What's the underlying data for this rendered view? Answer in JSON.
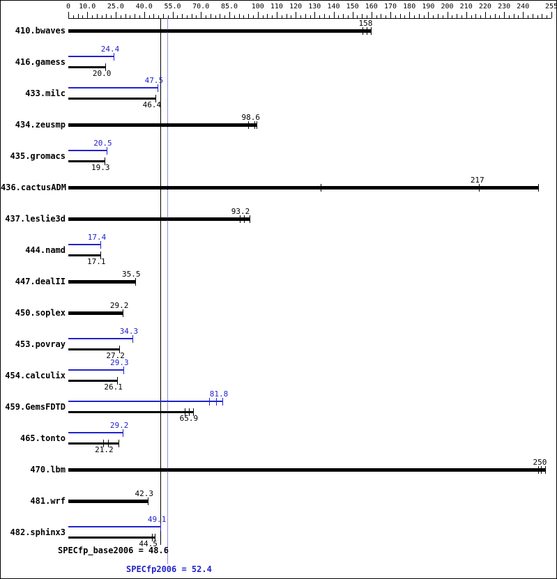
{
  "chart_data": {
    "type": "bar",
    "orientation": "horizontal",
    "title": "",
    "xlim": [
      0,
      255
    ],
    "grid": false,
    "axis_ticks": [
      {
        "value": 0,
        "label": "0"
      },
      {
        "value": 10,
        "label": "10.0"
      },
      {
        "value": 25,
        "label": "25.0"
      },
      {
        "value": 40,
        "label": "40.0"
      },
      {
        "value": 55,
        "label": "55.0"
      },
      {
        "value": 70,
        "label": "70.0"
      },
      {
        "value": 85,
        "label": "85.0"
      },
      {
        "value": 100,
        "label": "100"
      },
      {
        "value": 110,
        "label": "110"
      },
      {
        "value": 120,
        "label": "120"
      },
      {
        "value": 130,
        "label": "130"
      },
      {
        "value": 140,
        "label": "140"
      },
      {
        "value": 150,
        "label": "150"
      },
      {
        "value": 160,
        "label": "160"
      },
      {
        "value": 170,
        "label": "170"
      },
      {
        "value": 180,
        "label": "180"
      },
      {
        "value": 190,
        "label": "190"
      },
      {
        "value": 200,
        "label": "200"
      },
      {
        "value": 210,
        "label": "210"
      },
      {
        "value": 220,
        "label": "220"
      },
      {
        "value": 230,
        "label": "230"
      },
      {
        "value": 240,
        "label": "240"
      },
      {
        "value": 255,
        "label": "255"
      }
    ],
    "benchmarks": [
      {
        "name": "410.bwaves",
        "peak": null,
        "base": {
          "value": 158,
          "label": "158",
          "marks": [
            155.6,
            158,
            160
          ],
          "bar_end": 160
        }
      },
      {
        "name": "416.gamess",
        "peak": {
          "value": 24.4,
          "label": "24.4"
        },
        "base": {
          "value": 20.0,
          "label": "20.0"
        }
      },
      {
        "name": "433.milc",
        "peak": {
          "value": 47.5,
          "label": "47.5"
        },
        "base": {
          "value": 46.4,
          "label": "46.4"
        }
      },
      {
        "name": "434.zeusmp",
        "peak": null,
        "base": {
          "value": 98.6,
          "label": "98.6",
          "marks": [
            95.3,
            98.6,
            99.7
          ],
          "bar_end": 99.7
        }
      },
      {
        "name": "435.gromacs",
        "peak": {
          "value": 20.5,
          "label": "20.5"
        },
        "base": {
          "value": 19.3,
          "label": "19.3"
        }
      },
      {
        "name": "436.cactusADM",
        "peak": null,
        "base": {
          "value": 217,
          "label": "217",
          "marks": [
            133.5,
            217,
            248.5
          ],
          "bar_end": 248.5
        }
      },
      {
        "name": "437.leslie3d",
        "peak": null,
        "base": {
          "value": 93.2,
          "label": "93.2",
          "marks": [
            90.9,
            93.2,
            96
          ],
          "bar_end": 96
        }
      },
      {
        "name": "444.namd",
        "peak": {
          "value": 17.4,
          "label": "17.4"
        },
        "base": {
          "value": 17.1,
          "label": "17.1"
        }
      },
      {
        "name": "447.dealII",
        "peak": null,
        "base": {
          "value": 35.5,
          "label": "35.5"
        }
      },
      {
        "name": "450.soplex",
        "peak": null,
        "base": {
          "value": 29.2,
          "label": "29.2"
        }
      },
      {
        "name": "453.povray",
        "peak": {
          "value": 34.3,
          "label": "34.3"
        },
        "base": {
          "value": 27.2,
          "label": "27.2"
        }
      },
      {
        "name": "454.calculix",
        "peak": {
          "value": 29.3,
          "label": "29.3"
        },
        "base": {
          "value": 26.1,
          "label": "26.1"
        }
      },
      {
        "name": "459.GemsFDTD",
        "peak": {
          "value": 81.8,
          "label": "81.8",
          "marks": [
            74.7,
            78.4,
            81.8
          ]
        },
        "base": {
          "value": 65.9,
          "label": "65.9",
          "marks": [
            61.8,
            63.9,
            66.2
          ],
          "bar_end": 66.2
        }
      },
      {
        "name": "465.tonto",
        "peak": {
          "value": 29.2,
          "label": "29.2"
        },
        "base": {
          "value": 21.2,
          "label": "21.2",
          "marks": [
            18.8,
            21.2,
            26.9
          ],
          "bar_end": 26.9
        }
      },
      {
        "name": "470.lbm",
        "peak": null,
        "base": {
          "value": 250,
          "label": "250",
          "marks": [
            248.5,
            250,
            252
          ],
          "bar_end": 252
        }
      },
      {
        "name": "481.wrf",
        "peak": null,
        "base": {
          "value": 42.3,
          "label": "42.3"
        }
      },
      {
        "name": "482.sphinx3",
        "peak": {
          "value": 49.1,
          "label": "49.1"
        },
        "base": {
          "value": 44.5,
          "label": "44.5",
          "marks": [
            44.5,
            46
          ],
          "bar_end": 46
        }
      }
    ],
    "means": {
      "base": {
        "value": 48.6,
        "label": "SPECfp_base2006 = 48.6"
      },
      "peak": {
        "value": 52.4,
        "label": "SPECfp2006 = 52.4"
      }
    },
    "colors": {
      "base": "#000000",
      "peak": "#2222cc"
    }
  }
}
